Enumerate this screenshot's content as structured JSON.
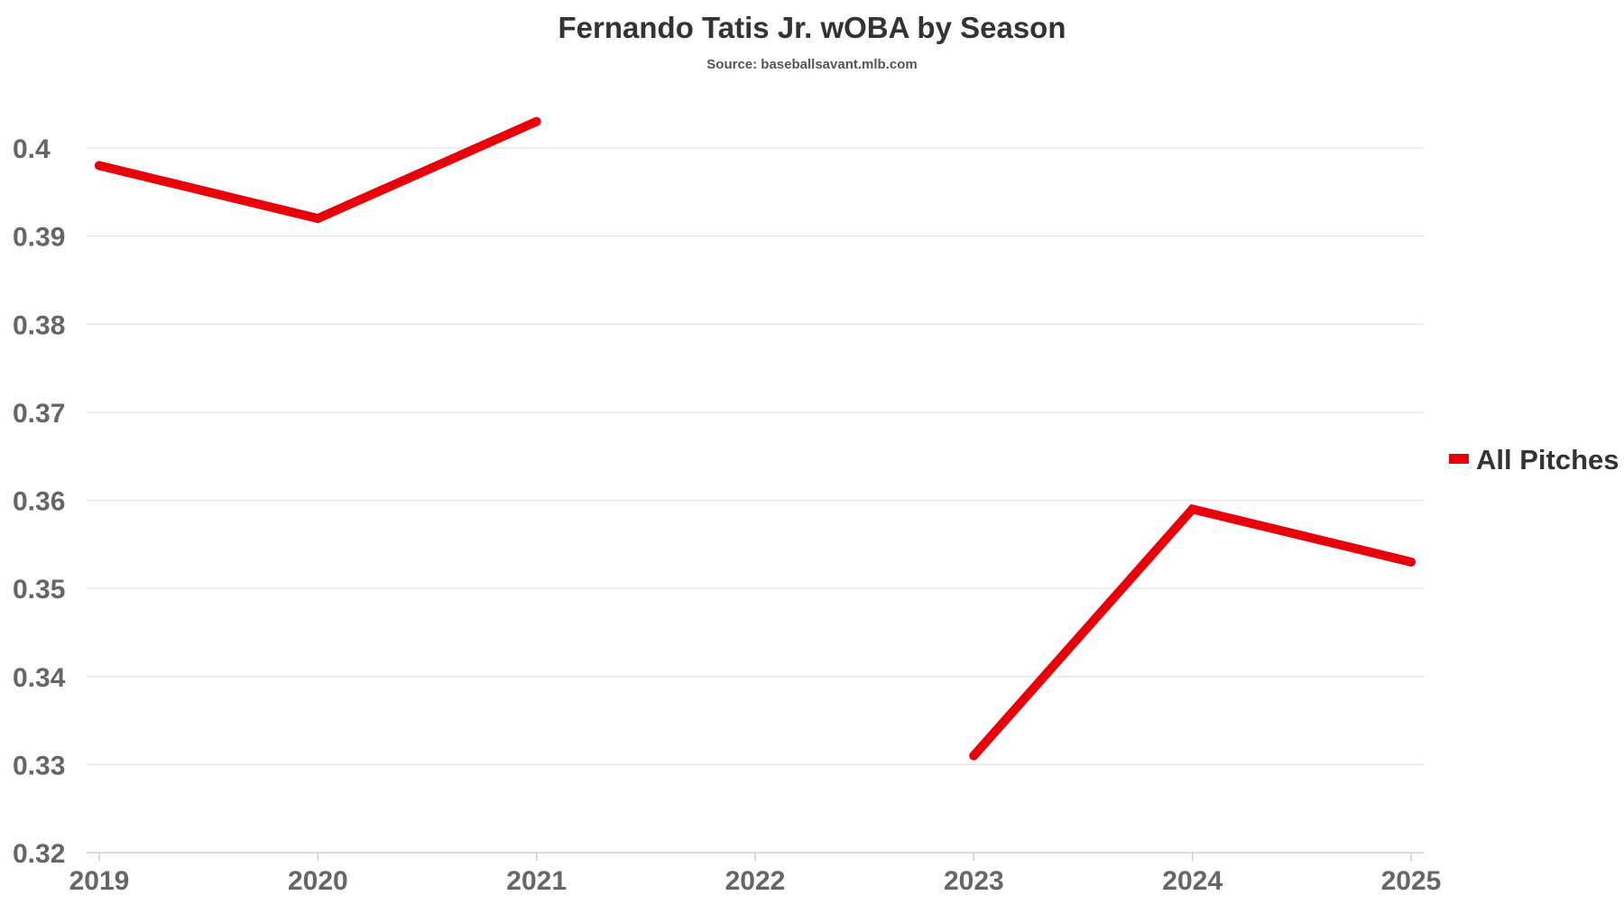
{
  "chart_data": {
    "type": "line",
    "title": "Fernando Tatis Jr. wOBA by Season",
    "subtitle": "Source: baseballsavant.mlb.com",
    "xlabel": "",
    "ylabel": "",
    "categories": [
      "2019",
      "2020",
      "2021",
      "2022",
      "2023",
      "2024",
      "2025"
    ],
    "ylim": [
      0.32,
      0.4
    ],
    "yticks": [
      0.32,
      0.33,
      0.34,
      0.35,
      0.36,
      0.37,
      0.38,
      0.39,
      0.4
    ],
    "ytick_labels": [
      "0.32",
      "0.33",
      "0.34",
      "0.35",
      "0.36",
      "0.37",
      "0.38",
      "0.39",
      "0.4"
    ],
    "grid": true,
    "legend_position": "right",
    "series": [
      {
        "name": "All Pitches",
        "color": "#e8000b",
        "values": [
          0.398,
          0.392,
          0.403,
          null,
          0.331,
          0.359,
          0.353
        ]
      }
    ]
  }
}
